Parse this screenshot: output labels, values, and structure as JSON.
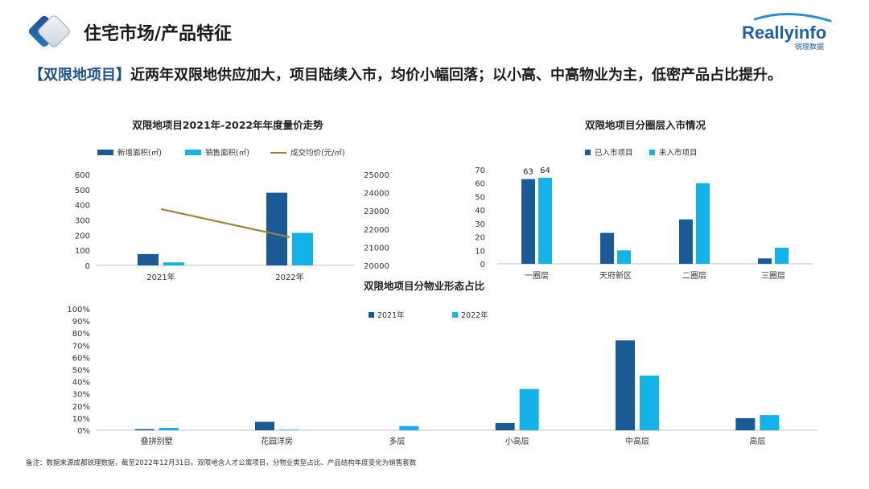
{
  "header": {
    "title": "住宅市场/产品特征",
    "brand_name": "Reallyinfo",
    "brand_sub": "锐理数据"
  },
  "headline": {
    "bracket": "【双限地项目】",
    "text": "近两年双限地供应加大，项目陆续入市，均价小幅回落；以小高、中高物业为主，低密产品占比提升。"
  },
  "footnote": "备注：数据来源成都锐理数据，截至2022年12月31日。双限地含人才公寓项目，分物业类型占比、产品结构年度变化为销售套数",
  "colors": {
    "dark": "#1a5a96",
    "light": "#13b2e8",
    "line": "#9c8438",
    "axis": "#bfbfbf"
  },
  "chart_data": [
    {
      "type": "bar",
      "title": "双限地项目2021年-2022年年度量价走势",
      "categories": [
        "2021年",
        "2022年"
      ],
      "series": [
        {
          "name": "新增面积(㎡)",
          "type": "bar",
          "axis": "left",
          "values": [
            75,
            480
          ]
        },
        {
          "name": "销售面积(㎡)",
          "type": "bar",
          "axis": "left",
          "values": [
            20,
            215
          ]
        },
        {
          "name": "成交均价(元/㎡)",
          "type": "line",
          "axis": "right",
          "values": [
            23100,
            21550
          ]
        }
      ],
      "ylim": [
        0,
        600
      ],
      "y_ticks": [
        "600",
        "500",
        "400",
        "300",
        "200",
        "100",
        "0"
      ],
      "y2lim": [
        20000,
        25000
      ],
      "y2_ticks": [
        "25000",
        "24000",
        "23000",
        "22000",
        "21000",
        "20000"
      ]
    },
    {
      "type": "bar",
      "title": "双限地项目分圈层入市情况",
      "categories": [
        "一圈层",
        "天府新区",
        "二圈层",
        "三圈层"
      ],
      "series": [
        {
          "name": "已入市项目",
          "values": [
            63,
            23,
            33,
            4
          ]
        },
        {
          "name": "未入市项目",
          "values": [
            64,
            10,
            60,
            12
          ]
        }
      ],
      "data_labels": [
        "63",
        "64"
      ],
      "ylim": [
        0,
        70
      ],
      "y_ticks": [
        "70",
        "60",
        "50",
        "40",
        "30",
        "20",
        "10",
        "0"
      ]
    },
    {
      "type": "bar",
      "title": "双限地项目分物业形态占比",
      "categories": [
        "叠拼别墅",
        "花园洋房",
        "多层",
        "小高层",
        "中高层",
        "高层"
      ],
      "series": [
        {
          "name": "2021年",
          "values": [
            1,
            7,
            0,
            6,
            74,
            10
          ]
        },
        {
          "name": "2022年",
          "values": [
            2,
            0.5,
            3.5,
            34,
            45,
            12.5
          ]
        }
      ],
      "ylim": [
        0,
        100
      ],
      "y_ticks": [
        "100%",
        "90%",
        "80%",
        "70%",
        "60%",
        "50%",
        "40%",
        "30%",
        "20%",
        "10%",
        "0%"
      ]
    }
  ]
}
